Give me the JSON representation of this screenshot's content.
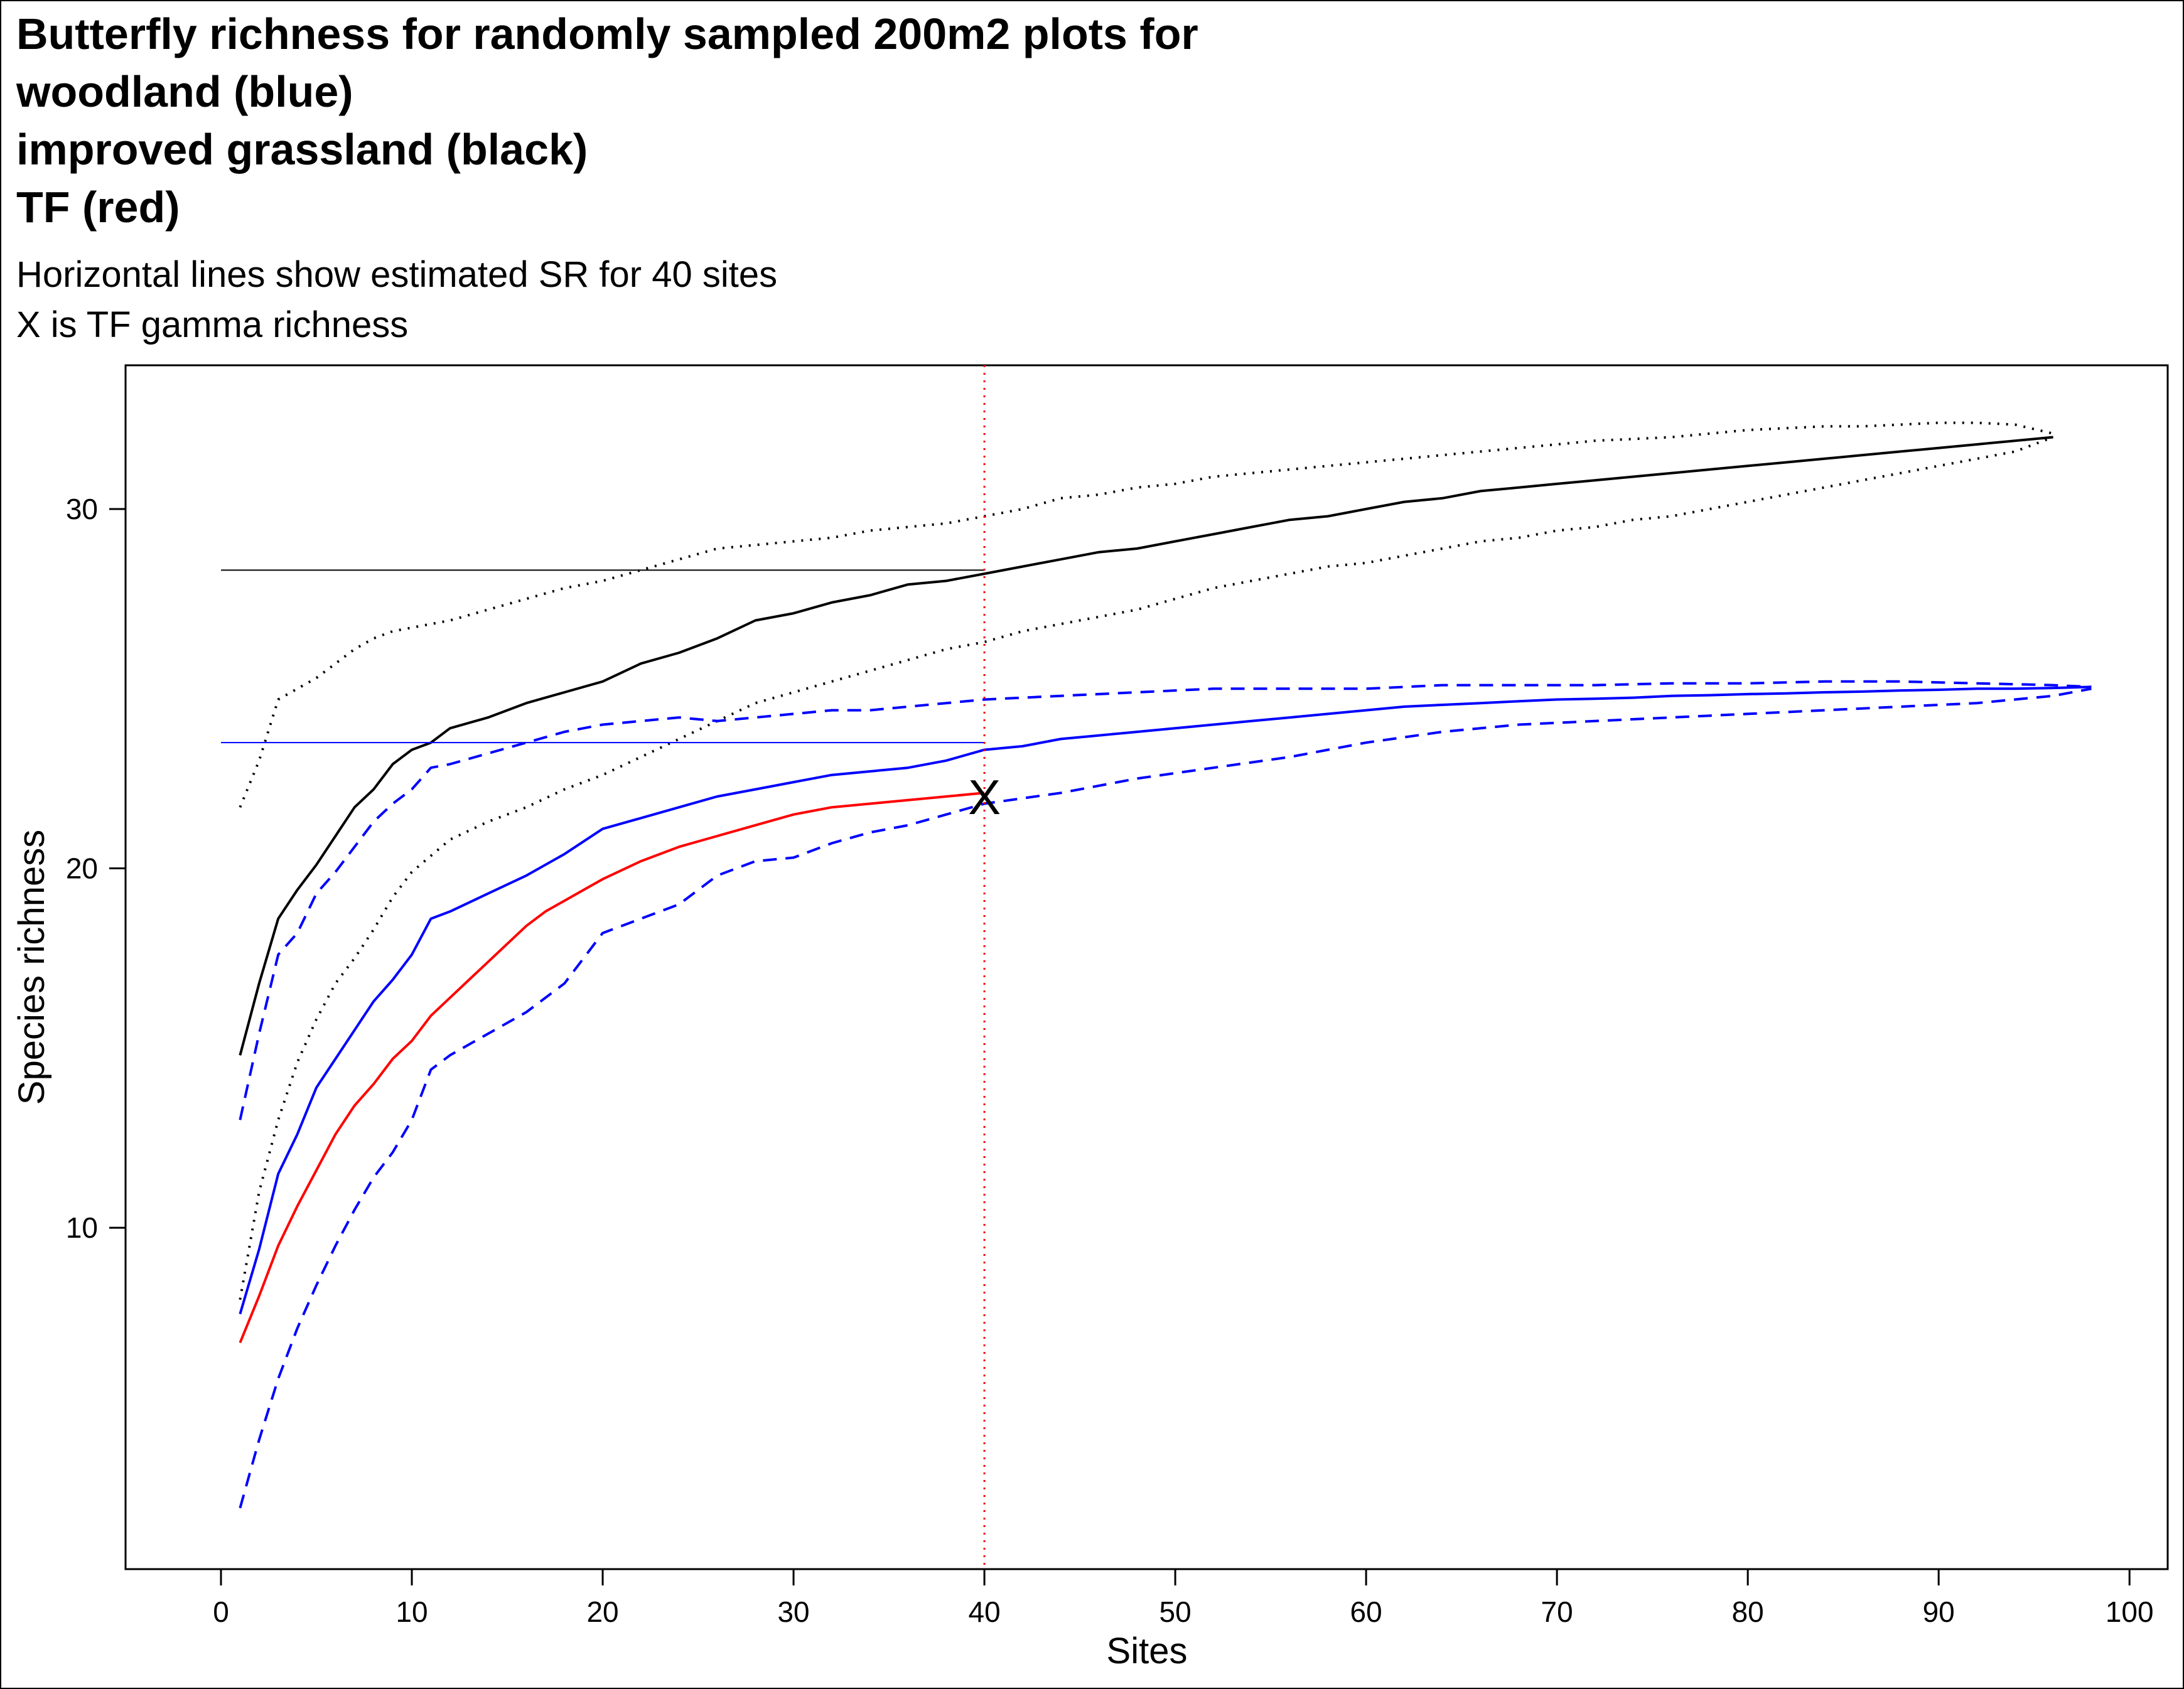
{
  "chart_data": {
    "type": "line",
    "title_lines": [
      "Butterfly richness for randomly sampled 200m2 plots for",
      "woodland (blue)",
      "improved grassland (black)",
      "TF (red)"
    ],
    "subtitle_lines": [
      "Horizontal lines show estimated SR for 40 sites",
      "X is TF gamma richness"
    ],
    "xlabel": "Sites",
    "ylabel": "Species richness",
    "xlim": [
      -5,
      102
    ],
    "ylim": [
      0.5,
      34
    ],
    "xticks": [
      0,
      10,
      20,
      30,
      40,
      50,
      60,
      70,
      80,
      90,
      100
    ],
    "yticks": [
      10,
      20,
      30
    ],
    "grid": false,
    "legend": "none",
    "colors": {
      "black": "#000000",
      "blue": "#0000ff",
      "red": "#ff0000"
    },
    "series": [
      {
        "color": "#000000",
        "style": "solid",
        "x": [
          1,
          2,
          3,
          4,
          5,
          6,
          7,
          8,
          9,
          10,
          11,
          12,
          14,
          16,
          18,
          20,
          22,
          24,
          26,
          28,
          30,
          32,
          34,
          36,
          38,
          40,
          42,
          44,
          46,
          48,
          50,
          52,
          54,
          56,
          58,
          60,
          62,
          64,
          66,
          68,
          70,
          72,
          74,
          76,
          78,
          80,
          82,
          84,
          86,
          88,
          90,
          92,
          94,
          96
        ],
        "y": [
          14.8,
          16.8,
          18.6,
          19.4,
          20.1,
          20.9,
          21.7,
          22.2,
          22.9,
          23.3,
          23.5,
          23.9,
          24.2,
          24.6,
          24.9,
          25.2,
          25.7,
          26.0,
          26.4,
          26.9,
          27.1,
          27.4,
          27.6,
          27.9,
          28.0,
          28.2,
          28.4,
          28.6,
          28.8,
          28.9,
          29.1,
          29.3,
          29.5,
          29.7,
          29.8,
          30.0,
          30.2,
          30.3,
          30.5,
          30.6,
          30.7,
          30.8,
          30.9,
          31.0,
          31.1,
          31.2,
          31.3,
          31.4,
          31.5,
          31.6,
          31.7,
          31.8,
          31.9,
          32.0
        ]
      },
      {
        "color": "#000000",
        "style": "dotted",
        "x": [
          1,
          2,
          3,
          4,
          5,
          6,
          7,
          8,
          9,
          10,
          12,
          14,
          16,
          18,
          20,
          22,
          24,
          26,
          28,
          30,
          32,
          34,
          36,
          38,
          40,
          42,
          44,
          46,
          48,
          50,
          52,
          54,
          56,
          58,
          60,
          62,
          64,
          66,
          68,
          70,
          72,
          74,
          76,
          78,
          80,
          82,
          84,
          86,
          88,
          90,
          92,
          94,
          96
        ],
        "y": [
          21.7,
          23.0,
          24.7,
          25.0,
          25.3,
          25.7,
          26.1,
          26.4,
          26.6,
          26.7,
          26.9,
          27.2,
          27.5,
          27.8,
          28.0,
          28.3,
          28.6,
          28.9,
          29.0,
          29.1,
          29.2,
          29.4,
          29.5,
          29.6,
          29.8,
          30.0,
          30.3,
          30.4,
          30.6,
          30.7,
          30.9,
          31.0,
          31.1,
          31.2,
          31.3,
          31.4,
          31.5,
          31.6,
          31.7,
          31.8,
          31.9,
          31.95,
          32.0,
          32.1,
          32.2,
          32.25,
          32.3,
          32.3,
          32.35,
          32.4,
          32.4,
          32.35,
          32.1
        ]
      },
      {
        "color": "#000000",
        "style": "dotted",
        "x": [
          1,
          2,
          3,
          4,
          5,
          6,
          7,
          8,
          9,
          10,
          12,
          14,
          16,
          18,
          20,
          22,
          24,
          26,
          28,
          30,
          32,
          34,
          36,
          38,
          40,
          42,
          44,
          46,
          48,
          50,
          52,
          54,
          56,
          58,
          60,
          62,
          64,
          66,
          68,
          70,
          72,
          74,
          76,
          78,
          80,
          82,
          84,
          86,
          88,
          90,
          92,
          94,
          96
        ],
        "y": [
          8.0,
          11.0,
          13.0,
          14.6,
          15.8,
          16.8,
          17.5,
          18.3,
          19.2,
          19.9,
          20.8,
          21.3,
          21.7,
          22.2,
          22.6,
          23.1,
          23.6,
          24.1,
          24.6,
          24.9,
          25.2,
          25.5,
          25.8,
          26.1,
          26.3,
          26.6,
          26.8,
          27.0,
          27.2,
          27.5,
          27.8,
          28.0,
          28.2,
          28.4,
          28.5,
          28.7,
          28.9,
          29.1,
          29.2,
          29.4,
          29.5,
          29.7,
          29.8,
          30.0,
          30.2,
          30.4,
          30.6,
          30.8,
          31.0,
          31.2,
          31.4,
          31.6,
          32.0
        ]
      },
      {
        "color": "#0000ff",
        "style": "solid",
        "x": [
          1,
          2,
          3,
          4,
          5,
          6,
          7,
          8,
          9,
          10,
          11,
          12,
          14,
          16,
          18,
          20,
          22,
          24,
          26,
          28,
          30,
          32,
          34,
          36,
          38,
          40,
          42,
          44,
          46,
          48,
          50,
          52,
          54,
          56,
          58,
          60,
          62,
          64,
          66,
          68,
          70,
          72,
          74,
          76,
          78,
          80,
          82,
          84,
          86,
          88,
          90,
          92,
          94,
          96,
          98
        ],
        "y": [
          7.6,
          9.4,
          11.5,
          12.6,
          13.9,
          14.7,
          15.5,
          16.3,
          16.9,
          17.6,
          18.6,
          18.8,
          19.3,
          19.8,
          20.4,
          21.1,
          21.4,
          21.7,
          22.0,
          22.2,
          22.4,
          22.6,
          22.7,
          22.8,
          23.0,
          23.3,
          23.4,
          23.6,
          23.7,
          23.8,
          23.9,
          24.0,
          24.1,
          24.2,
          24.3,
          24.4,
          24.5,
          24.55,
          24.6,
          24.65,
          24.7,
          24.72,
          24.75,
          24.8,
          24.82,
          24.85,
          24.87,
          24.9,
          24.92,
          24.95,
          24.97,
          25.0,
          25.0,
          25.02,
          25.05
        ]
      },
      {
        "color": "#0000ff",
        "style": "dashed",
        "x": [
          1,
          2,
          3,
          4,
          5,
          6,
          7,
          8,
          9,
          10,
          11,
          12,
          14,
          16,
          18,
          20,
          22,
          24,
          26,
          28,
          30,
          32,
          34,
          36,
          38,
          40,
          44,
          48,
          52,
          56,
          60,
          64,
          68,
          72,
          76,
          80,
          84,
          88,
          92,
          96,
          98
        ],
        "y": [
          13.0,
          15.4,
          17.6,
          18.2,
          19.3,
          19.9,
          20.6,
          21.3,
          21.8,
          22.2,
          22.8,
          22.9,
          23.2,
          23.5,
          23.8,
          24.0,
          24.1,
          24.2,
          24.1,
          24.2,
          24.3,
          24.4,
          24.4,
          24.5,
          24.6,
          24.7,
          24.8,
          24.9,
          25.0,
          25.0,
          25.0,
          25.1,
          25.1,
          25.1,
          25.15,
          25.15,
          25.2,
          25.2,
          25.15,
          25.1,
          25.05
        ]
      },
      {
        "color": "#0000ff",
        "style": "dashed",
        "x": [
          1,
          2,
          3,
          4,
          5,
          6,
          7,
          8,
          9,
          10,
          11,
          12,
          14,
          16,
          18,
          20,
          22,
          24,
          26,
          28,
          30,
          32,
          34,
          36,
          38,
          40,
          44,
          48,
          52,
          56,
          60,
          64,
          68,
          72,
          76,
          80,
          84,
          88,
          92,
          96,
          98
        ],
        "y": [
          2.2,
          4.1,
          5.8,
          7.2,
          8.4,
          9.5,
          10.5,
          11.4,
          12.1,
          13.0,
          14.4,
          14.8,
          15.4,
          16.0,
          16.8,
          18.2,
          18.6,
          19.0,
          19.8,
          20.2,
          20.3,
          20.7,
          21.0,
          21.2,
          21.5,
          21.8,
          22.1,
          22.5,
          22.8,
          23.1,
          23.5,
          23.8,
          24.0,
          24.1,
          24.2,
          24.3,
          24.4,
          24.5,
          24.6,
          24.8,
          25.0
        ]
      },
      {
        "color": "#ff0000",
        "style": "solid",
        "x": [
          1,
          2,
          3,
          4,
          5,
          6,
          7,
          8,
          9,
          10,
          11,
          12,
          13,
          14,
          15,
          16,
          17,
          18,
          19,
          20,
          22,
          24,
          26,
          28,
          30,
          32,
          34,
          36,
          38,
          40
        ],
        "y": [
          6.8,
          8.1,
          9.5,
          10.6,
          11.6,
          12.6,
          13.4,
          14.0,
          14.7,
          15.2,
          15.9,
          16.4,
          16.9,
          17.4,
          17.9,
          18.4,
          18.8,
          19.1,
          19.4,
          19.7,
          20.2,
          20.6,
          20.9,
          21.2,
          21.5,
          21.7,
          21.8,
          21.9,
          22.0,
          22.1
        ]
      }
    ],
    "horizontal_lines": [
      {
        "color": "#000000",
        "y": 28.3,
        "x": [
          0,
          40
        ]
      },
      {
        "color": "#0000ff",
        "y": 23.5,
        "x": [
          0,
          40
        ]
      }
    ],
    "vertical_line": {
      "color": "#ff0000",
      "style": "dotted",
      "x": 40
    },
    "marker": {
      "label": "X",
      "x": 40,
      "y": 22.0
    }
  }
}
